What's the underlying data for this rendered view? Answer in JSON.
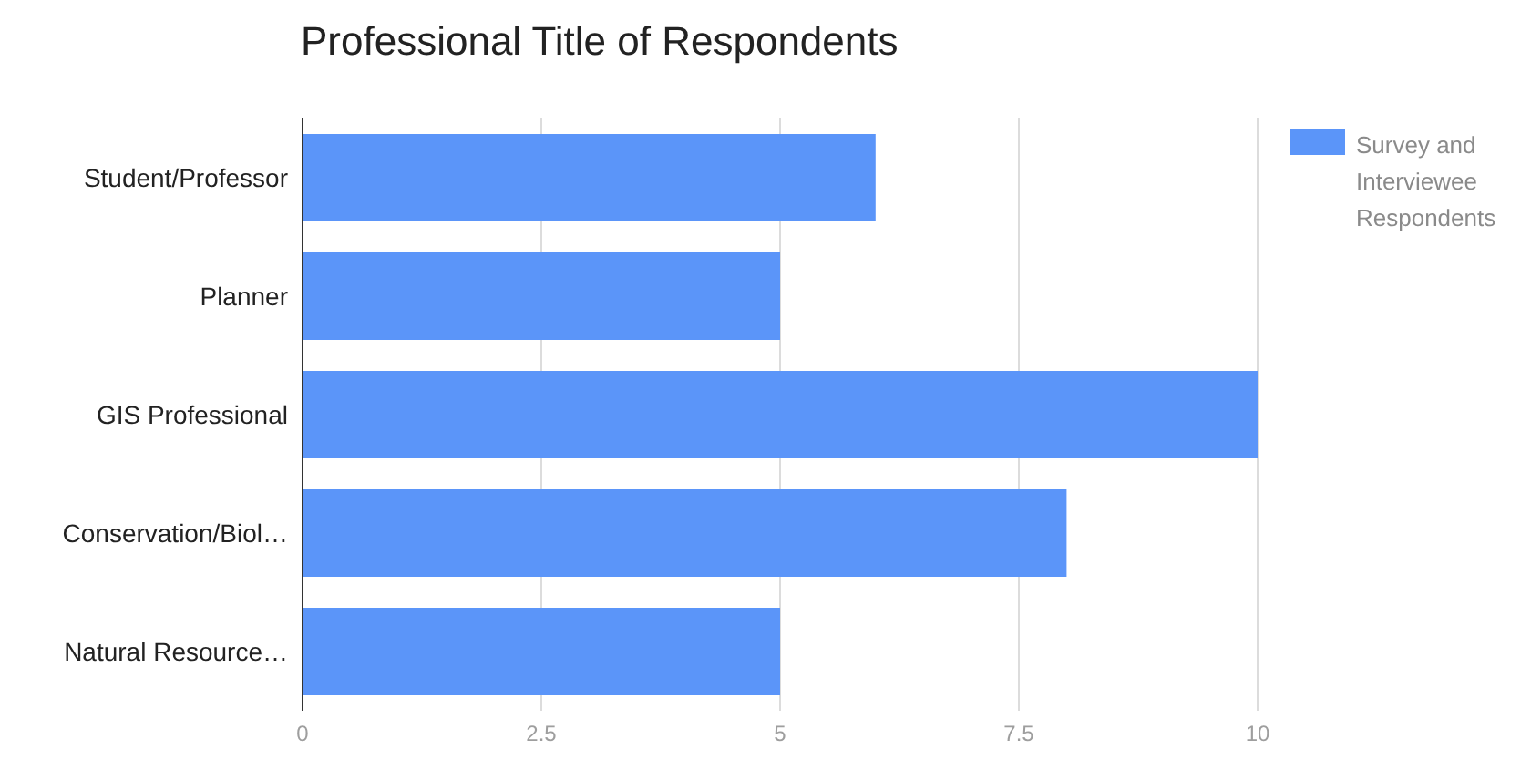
{
  "chart_data": {
    "type": "bar",
    "orientation": "horizontal",
    "title": "Professional Title of Respondents",
    "categories": [
      "Student/Professor",
      "Planner",
      "GIS Professional",
      "Conservation/Biol…",
      "Natural Resource…"
    ],
    "series": [
      {
        "name": "Survey and Interviewee Respondents",
        "color": "#5b95f9",
        "values": [
          6,
          5,
          10,
          8,
          5
        ]
      }
    ],
    "xlim": [
      0,
      10
    ],
    "xticks": [
      0,
      2.5,
      5,
      7.5,
      10
    ],
    "grid": "x",
    "legend": "top right"
  }
}
